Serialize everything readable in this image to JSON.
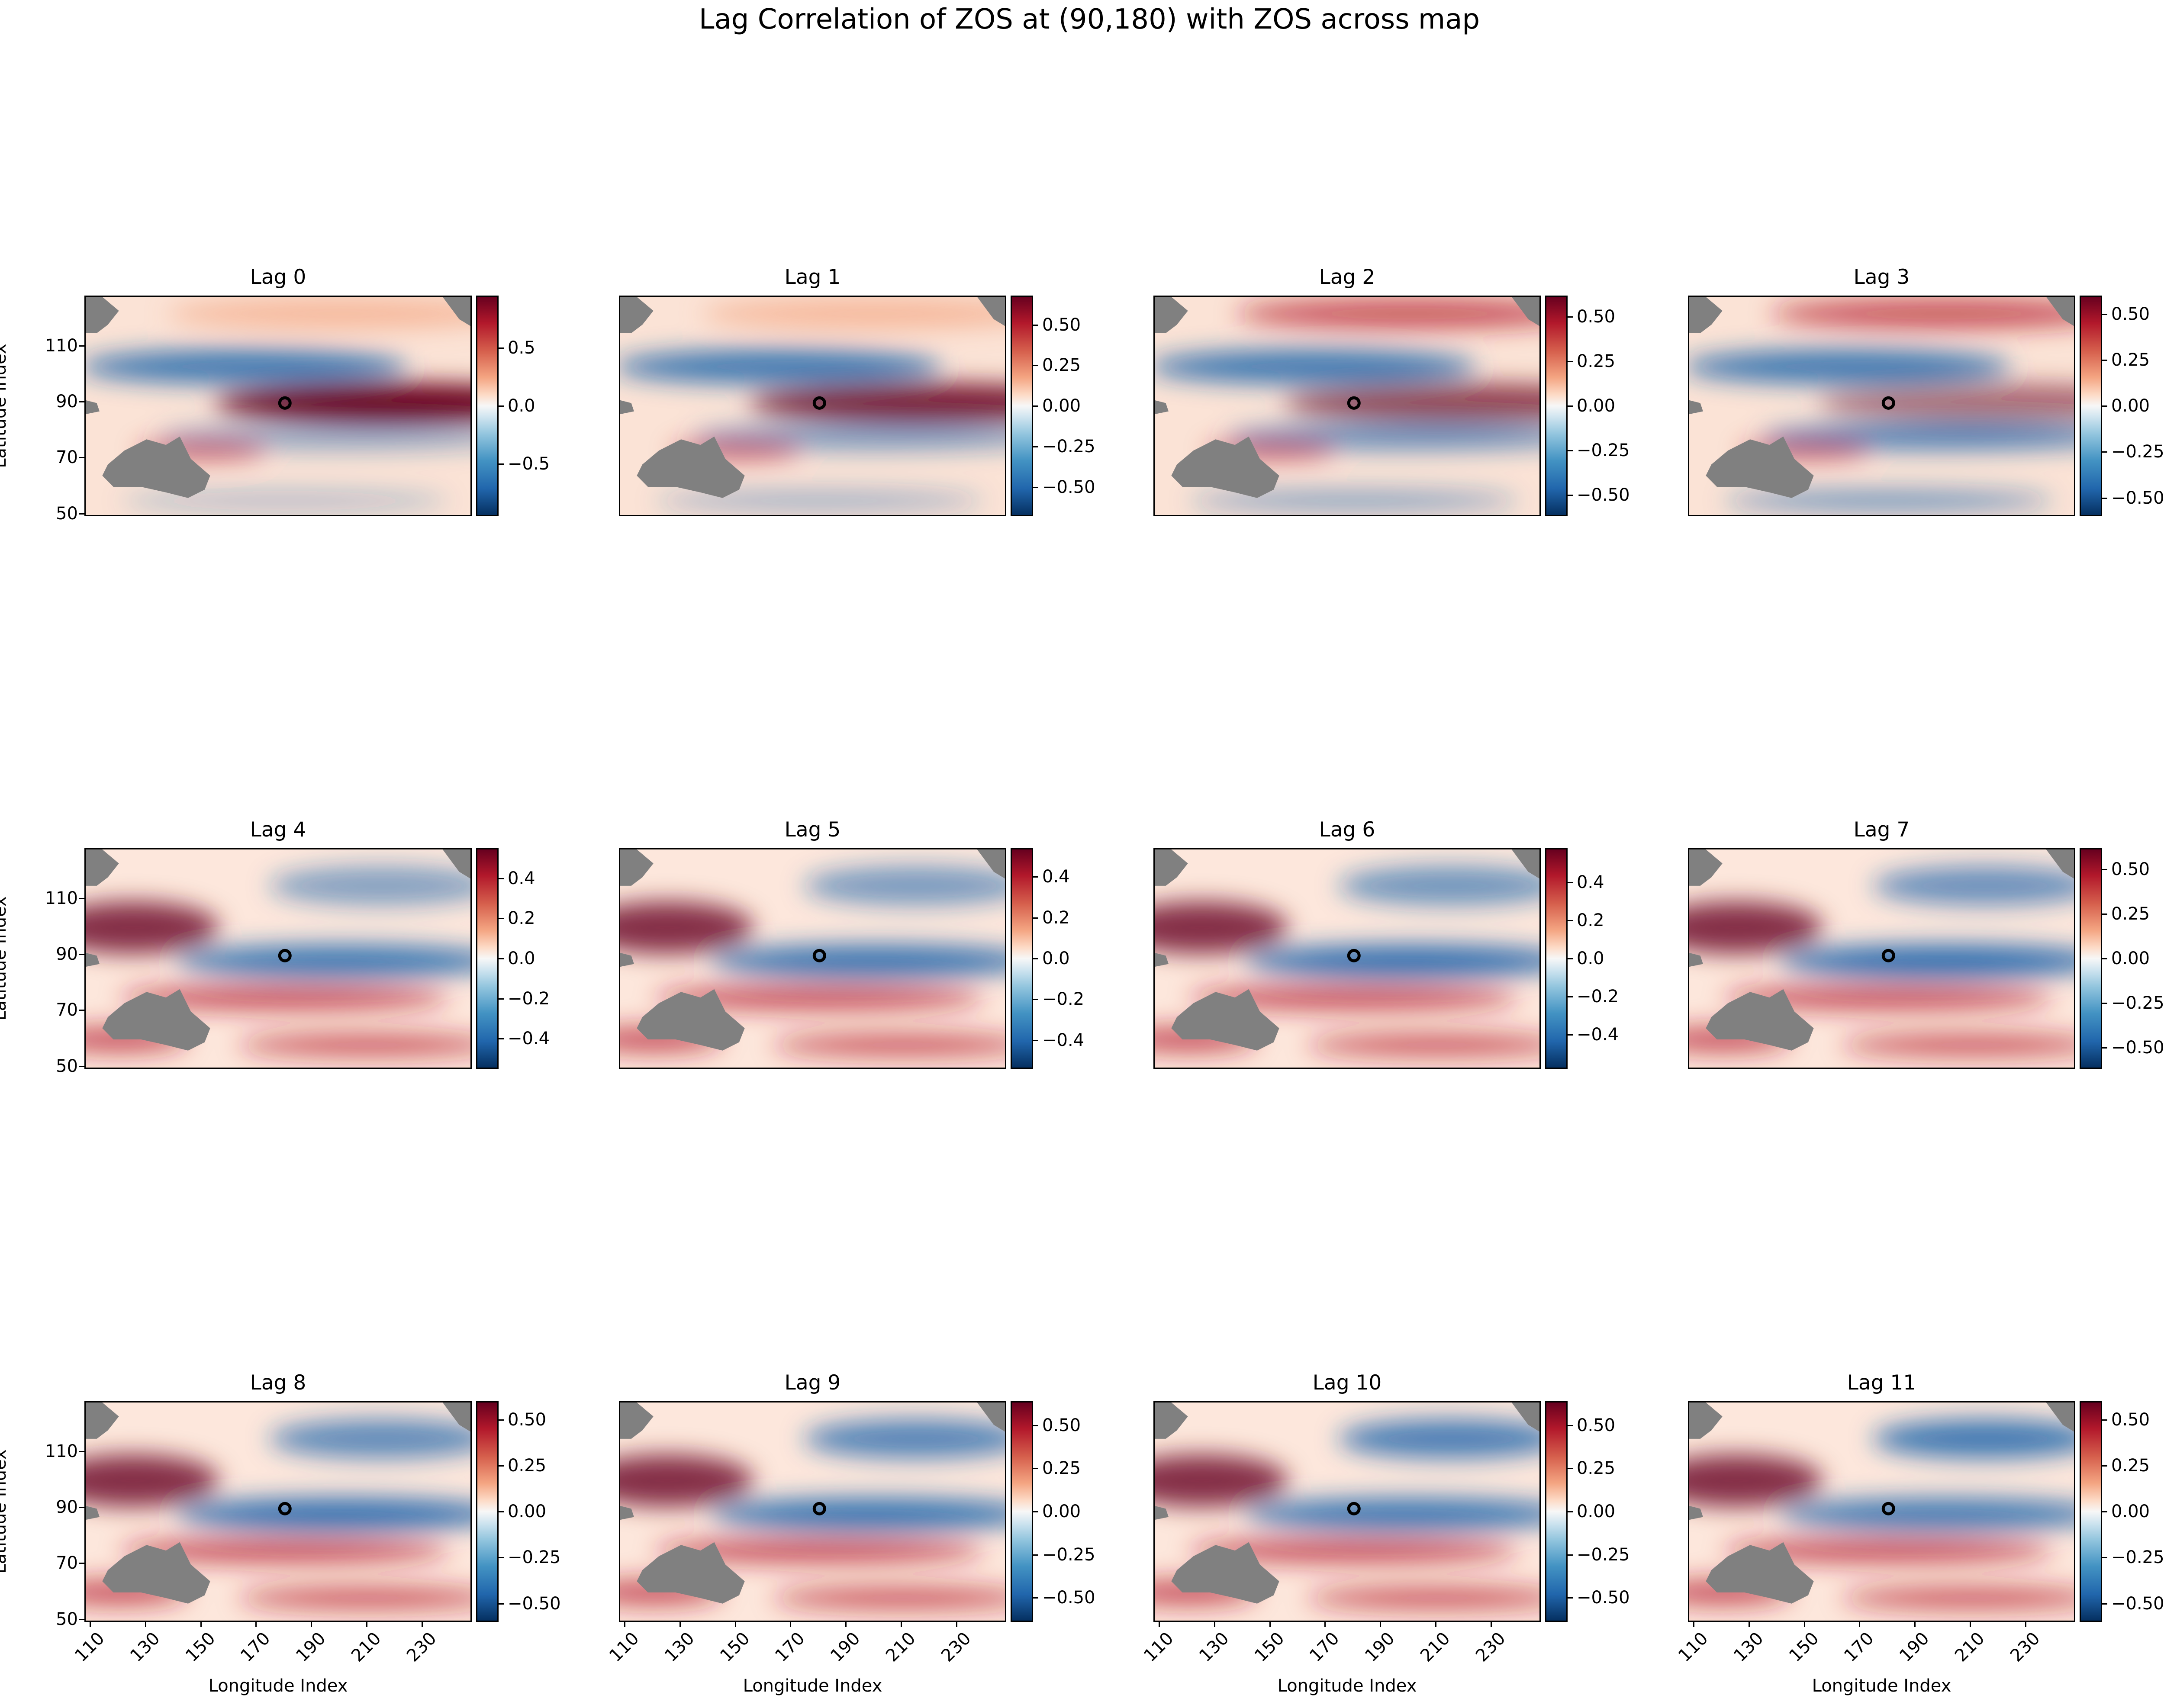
{
  "title": "Lag Correlation of ZOS at (90,180) with ZOS across map",
  "colors": {
    "land": "#808080",
    "cmap_pos_strong": "#67001f",
    "cmap_pos": "#b2182b",
    "cmap_neutral": "#f7f7f7",
    "cmap_neg": "#2166ac",
    "cmap_neg_strong": "#053061"
  },
  "axes": {
    "ylabel": "Latitude Index",
    "xlabel": "Longitude Index",
    "yticks": [
      "110",
      "90",
      "70",
      "50"
    ],
    "xticks": [
      "110",
      "130",
      "150",
      "170",
      "190",
      "210",
      "230"
    ]
  },
  "chart_data": {
    "type": "heatmap",
    "colormap": "RdBu_r",
    "land_mask_color": "gray",
    "marker": {
      "label": "(90,180)",
      "lat": 90,
      "lon": 180,
      "symbol": "open circle"
    },
    "xlim": [
      108,
      248
    ],
    "ylim": [
      49,
      128
    ],
    "panels": [
      {
        "title": "Lag 0",
        "colorbar_ticks": [
          "0.5",
          "0.0",
          "−0.5"
        ],
        "clim": [
          -0.95,
          0.95
        ],
        "pattern": "strong positive equatorial tongue, negative north band"
      },
      {
        "title": "Lag 1",
        "colorbar_ticks": [
          "0.50",
          "0.25",
          "0.00",
          "−0.25",
          "−0.50"
        ],
        "clim": [
          -0.68,
          0.68
        ],
        "pattern": "positive equatorial tongue"
      },
      {
        "title": "Lag 2",
        "colorbar_ticks": [
          "0.50",
          "0.25",
          "0.00",
          "−0.25",
          "−0.50"
        ],
        "clim": [
          -0.62,
          0.62
        ],
        "pattern": "positive equatorial tongue, positive north"
      },
      {
        "title": "Lag 3",
        "colorbar_ticks": [
          "0.50",
          "0.25",
          "0.00",
          "−0.25",
          "−0.50"
        ],
        "clim": [
          -0.6,
          0.6
        ],
        "pattern": "weakening equatorial tongue"
      },
      {
        "title": "Lag 4",
        "colorbar_ticks": [
          "0.4",
          "0.2",
          "0.0",
          "−0.2",
          "−0.4"
        ],
        "clim": [
          -0.55,
          0.55
        ],
        "pattern": "transition, negative south of equator"
      },
      {
        "title": "Lag 5",
        "colorbar_ticks": [
          "0.4",
          "0.2",
          "0.0",
          "−0.2",
          "−0.4"
        ],
        "clim": [
          -0.54,
          0.54
        ],
        "pattern": "negative equatorial band, positive west"
      },
      {
        "title": "Lag 6",
        "colorbar_ticks": [
          "0.4",
          "0.2",
          "0.0",
          "−0.2",
          "−0.4"
        ],
        "clim": [
          -0.58,
          0.58
        ],
        "pattern": "negative equatorial band"
      },
      {
        "title": "Lag 7",
        "colorbar_ticks": [
          "0.50",
          "0.25",
          "0.00",
          "−0.25",
          "−0.50"
        ],
        "clim": [
          -0.62,
          0.62
        ],
        "pattern": "negative equatorial band, positive west"
      },
      {
        "title": "Lag 8",
        "colorbar_ticks": [
          "0.50",
          "0.25",
          "0.00",
          "−0.25",
          "−0.50"
        ],
        "clim": [
          -0.6,
          0.6
        ],
        "pattern": "negative equatorial band, strong positive west"
      },
      {
        "title": "Lag 9",
        "colorbar_ticks": [
          "0.50",
          "0.25",
          "0.00",
          "−0.25",
          "−0.50"
        ],
        "clim": [
          -0.64,
          0.64
        ],
        "pattern": "negative equatorial band"
      },
      {
        "title": "Lag 10",
        "colorbar_ticks": [
          "0.50",
          "0.25",
          "0.00",
          "−0.25",
          "−0.50"
        ],
        "clim": [
          -0.64,
          0.64
        ],
        "pattern": "weak negative equatorial band"
      },
      {
        "title": "Lag 11",
        "colorbar_ticks": [
          "0.50",
          "0.25",
          "0.00",
          "−0.25",
          "−0.50"
        ],
        "clim": [
          -0.6,
          0.6
        ],
        "pattern": "weak negative equatorial band"
      }
    ]
  }
}
